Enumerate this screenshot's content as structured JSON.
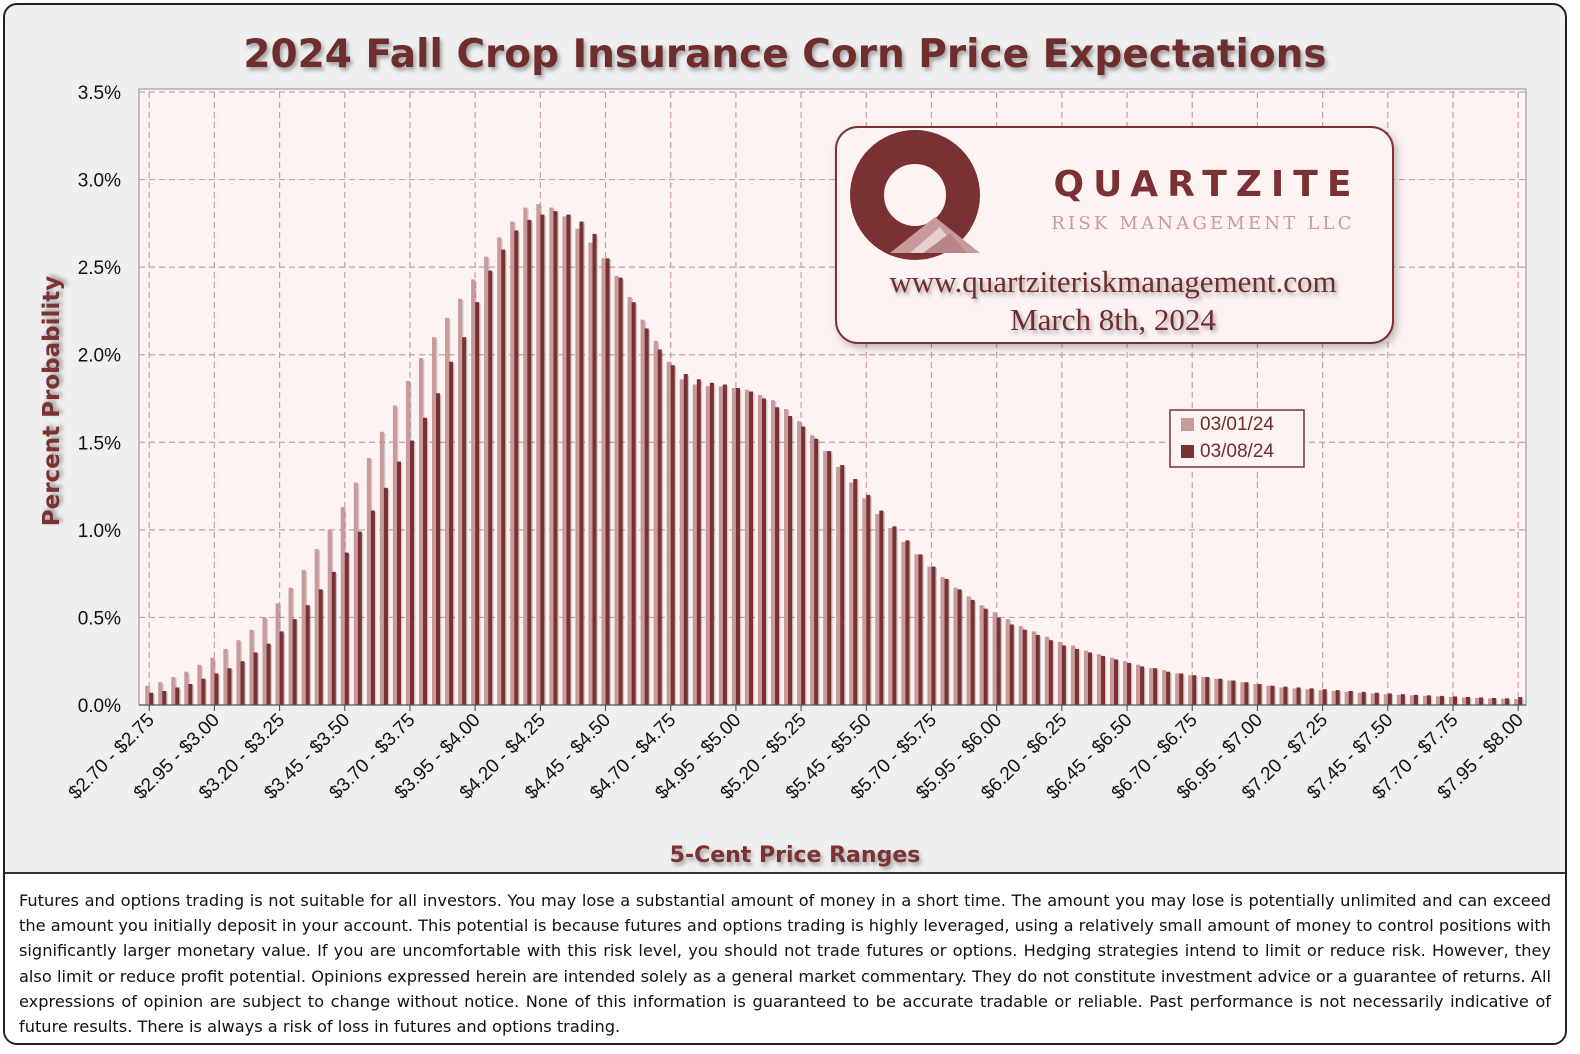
{
  "chart_data": {
    "type": "bar",
    "title": "2024 Fall Crop Insurance Corn Price Expectations",
    "xlabel": "5-Cent Price Ranges",
    "ylabel": "Percent Probability",
    "ylim": [
      0,
      3.5
    ],
    "yticks": [
      "0.0%",
      "0.5%",
      "1.0%",
      "1.5%",
      "2.0%",
      "2.5%",
      "3.0%",
      "3.5%"
    ],
    "grid": true,
    "legend_position": "right",
    "bin_start": 2.7,
    "bin_width": 0.05,
    "xtick_labels": [
      "$2.70 - $2.75",
      "$2.95 - $3.00",
      "$3.20 - $3.25",
      "$3.45 - $3.50",
      "$3.70 - $3.75",
      "$3.95 - $4.00",
      "$4.20 - $4.25",
      "$4.45 - $4.50",
      "$4.70 - $4.75",
      "$4.95 - $5.00",
      "$5.20 - $5.25",
      "$5.45 - $5.50",
      "$5.70 - $5.75",
      "$5.95 - $6.00",
      "$6.20 - $6.25",
      "$6.45 - $6.50",
      "$6.70 - $6.75",
      "$6.95 - $7.00",
      "$7.20 - $7.25",
      "$7.45 - $7.50",
      "$7.70 - $7.75",
      "$7.95 - $8.00"
    ],
    "series": [
      {
        "name": "03/01/24",
        "color": "#c99a9b",
        "values": [
          0.11,
          0.13,
          0.16,
          0.19,
          0.23,
          0.27,
          0.32,
          0.37,
          0.43,
          0.5,
          0.58,
          0.67,
          0.77,
          0.89,
          1.0,
          1.13,
          1.27,
          1.41,
          1.56,
          1.71,
          1.85,
          1.98,
          2.1,
          2.21,
          2.32,
          2.43,
          2.56,
          2.67,
          2.76,
          2.84,
          2.86,
          2.84,
          2.79,
          2.72,
          2.64,
          2.55,
          2.45,
          2.33,
          2.2,
          2.08,
          1.96,
          1.86,
          1.83,
          1.82,
          1.82,
          1.81,
          1.8,
          1.77,
          1.74,
          1.69,
          1.62,
          1.54,
          1.45,
          1.36,
          1.27,
          1.18,
          1.09,
          1.01,
          0.93,
          0.86,
          0.79,
          0.73,
          0.67,
          0.62,
          0.57,
          0.53,
          0.49,
          0.45,
          0.42,
          0.39,
          0.36,
          0.34,
          0.31,
          0.29,
          0.27,
          0.25,
          0.23,
          0.21,
          0.2,
          0.18,
          0.17,
          0.16,
          0.15,
          0.14,
          0.13,
          0.12,
          0.11,
          0.1,
          0.095,
          0.09,
          0.085,
          0.08,
          0.075,
          0.07,
          0.066,
          0.062,
          0.058,
          0.055,
          0.052,
          0.049,
          0.046,
          0.043,
          0.04,
          0.038,
          0.036,
          0.034
        ]
      },
      {
        "name": "03/08/24",
        "color": "#7a3133",
        "values": [
          0.07,
          0.08,
          0.1,
          0.12,
          0.15,
          0.18,
          0.21,
          0.25,
          0.3,
          0.35,
          0.42,
          0.49,
          0.57,
          0.66,
          0.76,
          0.87,
          0.99,
          1.11,
          1.24,
          1.39,
          1.51,
          1.64,
          1.78,
          1.96,
          2.1,
          2.3,
          2.48,
          2.6,
          2.71,
          2.77,
          2.8,
          2.82,
          2.8,
          2.76,
          2.69,
          2.55,
          2.44,
          2.3,
          2.15,
          2.03,
          1.94,
          1.89,
          1.86,
          1.84,
          1.83,
          1.81,
          1.79,
          1.75,
          1.7,
          1.65,
          1.59,
          1.52,
          1.45,
          1.37,
          1.29,
          1.2,
          1.11,
          1.02,
          0.94,
          0.86,
          0.79,
          0.72,
          0.66,
          0.6,
          0.55,
          0.5,
          0.46,
          0.43,
          0.4,
          0.37,
          0.34,
          0.32,
          0.3,
          0.28,
          0.26,
          0.24,
          0.22,
          0.21,
          0.19,
          0.18,
          0.17,
          0.16,
          0.15,
          0.14,
          0.13,
          0.12,
          0.11,
          0.105,
          0.1,
          0.095,
          0.09,
          0.085,
          0.08,
          0.075,
          0.07,
          0.066,
          0.062,
          0.058,
          0.055,
          0.052,
          0.049,
          0.046,
          0.043,
          0.04,
          0.038,
          0.045
        ]
      }
    ]
  },
  "logo": {
    "name": "QUARTZITE",
    "subtitle": "RISK MANAGEMENT LLC",
    "website": "www.quartziteriskmanagement.com",
    "date": "March 8th, 2024"
  },
  "colors": {
    "title": "#6e2d2f",
    "plot_bg": "#fdf3f2",
    "grid": "#c9a0a2",
    "series1": "#c99a9b",
    "series2": "#7a3133"
  },
  "disclaimer": "Futures and options trading is not suitable for all investors. You may lose a substantial amount of money in a short time. The amount you may lose is potentially unlimited and can exceed the amount you initially deposit in your account. This potential is because futures and options trading is highly leveraged, using a relatively small amount of money to control positions with significantly larger monetary value. If you are uncomfortable with this risk level, you should not trade futures or options. Hedging strategies intend to limit or reduce risk. However, they also limit or reduce profit potential. Opinions expressed herein are intended solely as a general market commentary. They do not constitute investment advice or a guarantee of returns. All expressions of opinion are subject to change without notice. None of this information is guaranteed to be accurate tradable or reliable. Past performance is not necessarily indicative of future results. There is always a risk of loss in futures and options trading."
}
